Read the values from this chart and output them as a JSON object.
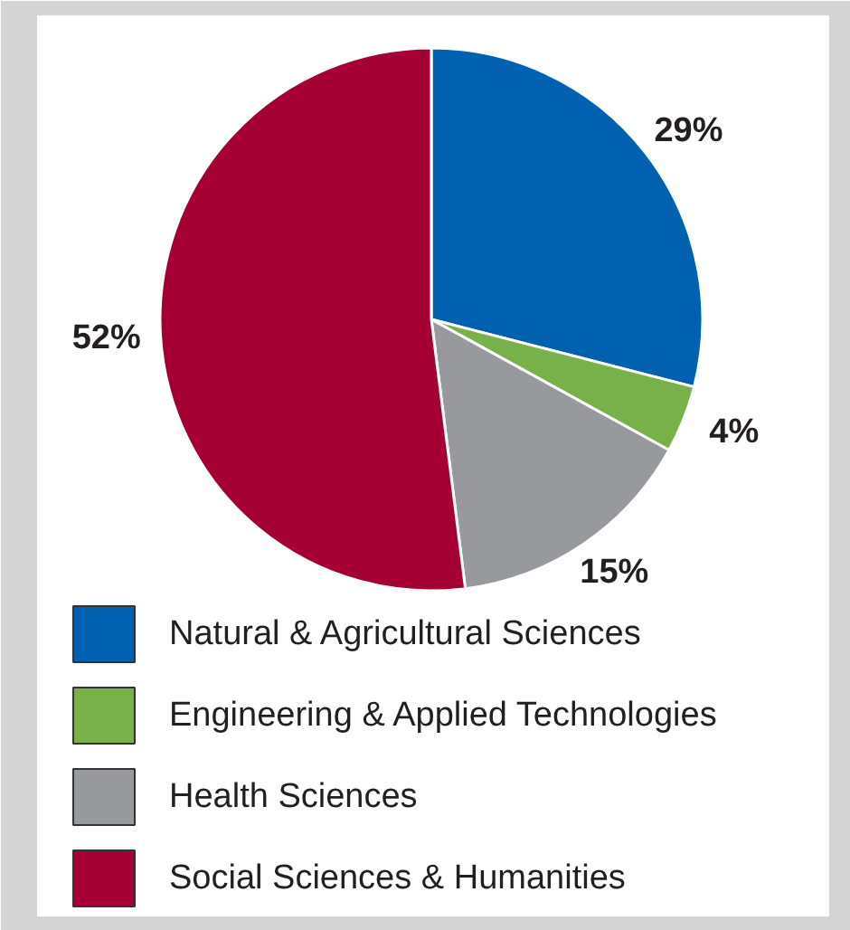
{
  "chart_data": {
    "type": "pie",
    "categories": [
      "Natural & Agricultural Sciences",
      "Engineering & Applied Technologies",
      "Health Sciences",
      "Social Sciences & Humanities"
    ],
    "values": [
      29,
      4,
      15,
      52
    ],
    "colors": [
      "#0061b1",
      "#78b04a",
      "#97999c",
      "#a50034"
    ],
    "value_labels": [
      "29%",
      "4%",
      "15%",
      "52%"
    ],
    "legend": "bottom"
  }
}
